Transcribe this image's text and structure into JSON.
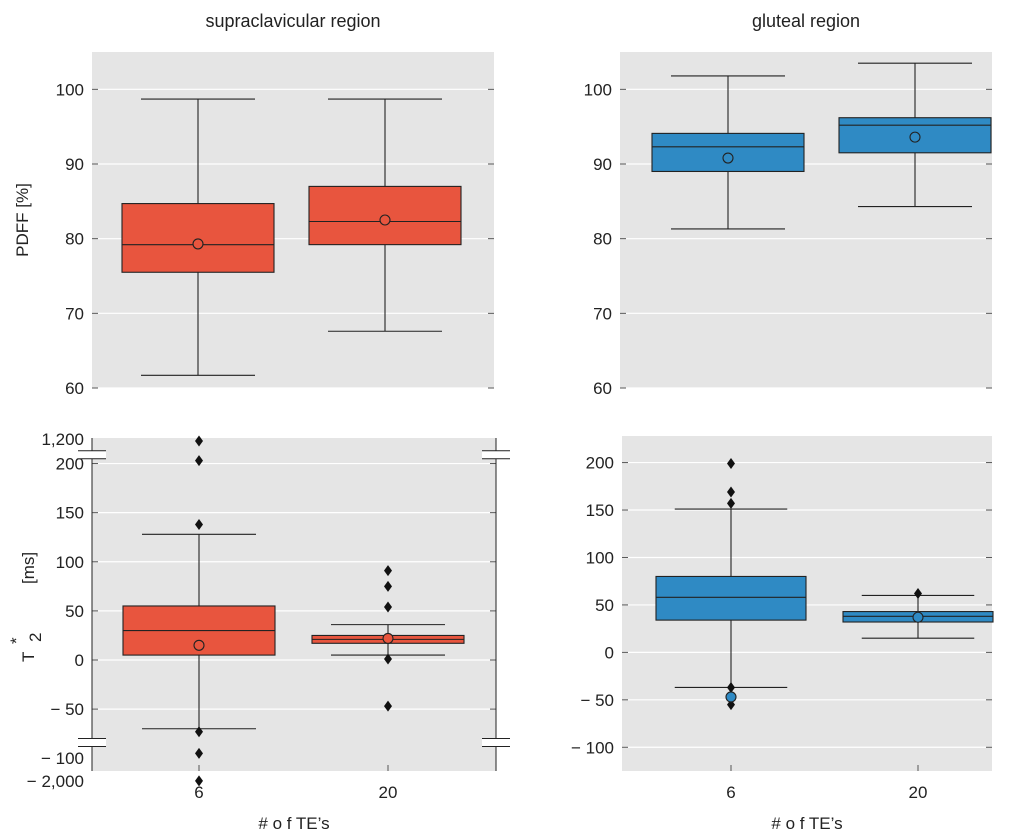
{
  "chart_data": [
    {
      "type": "box",
      "panel": "top-left",
      "title": "supraclavicular region",
      "ylabel": "PDFF  [%]",
      "xlabel": "",
      "ylim": [
        60,
        105
      ],
      "yticks": [
        60,
        70,
        80,
        90,
        100
      ],
      "ytick_labels": [
        "60",
        "70",
        "80",
        "90",
        "100"
      ],
      "categories": [
        "6",
        "20"
      ],
      "color": "#e8553e",
      "boxes": [
        {
          "whislo": 61.7,
          "q1": 75.5,
          "med": 79.2,
          "q3": 84.7,
          "whishi": 98.7,
          "mean": 79.3,
          "fliers": []
        },
        {
          "whislo": 67.6,
          "q1": 79.2,
          "med": 82.3,
          "q3": 87.0,
          "whishi": 98.7,
          "mean": 82.5,
          "fliers": []
        }
      ]
    },
    {
      "type": "box",
      "panel": "top-right",
      "title": "gluteal region",
      "ylabel": "",
      "xlabel": "",
      "ylim": [
        60,
        105
      ],
      "yticks": [
        60,
        70,
        80,
        90,
        100
      ],
      "ytick_labels": [
        "60",
        "70",
        "80",
        "90",
        "100"
      ],
      "categories": [
        "6",
        "20"
      ],
      "color": "#2f8ac4",
      "boxes": [
        {
          "whislo": 81.3,
          "q1": 89.0,
          "med": 92.3,
          "q3": 94.1,
          "whishi": 101.8,
          "mean": 90.8,
          "fliers": []
        },
        {
          "whislo": 84.3,
          "q1": 91.5,
          "med": 95.2,
          "q3": 96.2,
          "whishi": 103.5,
          "mean": 93.6,
          "fliers": []
        }
      ]
    },
    {
      "type": "box",
      "panel": "bottom-left",
      "title": "",
      "ylabel": "T₂* [ms]",
      "ylabel_main": "T",
      "ylabel_sup": "*",
      "ylabel_sub": "2",
      "ylabel_unit": "[ms]",
      "xlabel": "# o f TE’s",
      "broken_axis": true,
      "ylim": [
        -113,
        226
      ],
      "yticks": [
        -50,
        0,
        50,
        100,
        150,
        200
      ],
      "ytick_labels": [
        "− 50",
        "0",
        "50",
        "100",
        "150",
        "200"
      ],
      "extra_ticks": [
        {
          "label": "1,200",
          "plot_at": 225
        },
        {
          "label": "− 100",
          "plot_at": -100
        },
        {
          "label": "− 2,000",
          "plot_at": -123
        }
      ],
      "categories": [
        "6",
        "20"
      ],
      "color": "#e8553e",
      "boxes": [
        {
          "whislo": -70,
          "q1": 5,
          "med": 30,
          "q3": 55,
          "whishi": 128,
          "mean": 15,
          "fliers": [
            138,
            203,
            1200,
            -73,
            -95,
            -2000
          ],
          "flier_plot": [
            138,
            203,
            223,
            -73,
            -95,
            -123
          ]
        },
        {
          "whislo": 5,
          "q1": 17,
          "med": 21,
          "q3": 25,
          "whishi": 36,
          "mean": 22,
          "fliers": [
            91,
            75,
            54,
            1,
            -47
          ],
          "flier_plot": [
            91,
            75,
            54,
            1,
            -47
          ]
        }
      ]
    },
    {
      "type": "box",
      "panel": "bottom-right",
      "title": "",
      "ylabel": "",
      "xlabel": "# o f TE’s",
      "ylim": [
        -125,
        228
      ],
      "yticks": [
        -100,
        -50,
        0,
        50,
        100,
        150,
        200
      ],
      "ytick_labels": [
        "− 100",
        "− 50",
        "0",
        "50",
        "100",
        "150",
        "200"
      ],
      "categories": [
        "6",
        "20"
      ],
      "color": "#2f8ac4",
      "boxes": [
        {
          "whislo": -37,
          "q1": 34,
          "med": 58,
          "q3": 80,
          "whishi": 151,
          "mean": -47,
          "fliers": [
            157,
            169,
            199,
            -37,
            -55
          ]
        },
        {
          "whislo": 15,
          "q1": 32,
          "med": 38,
          "q3": 43,
          "whishi": 60,
          "mean": 37,
          "fliers": [
            62
          ]
        }
      ]
    }
  ]
}
